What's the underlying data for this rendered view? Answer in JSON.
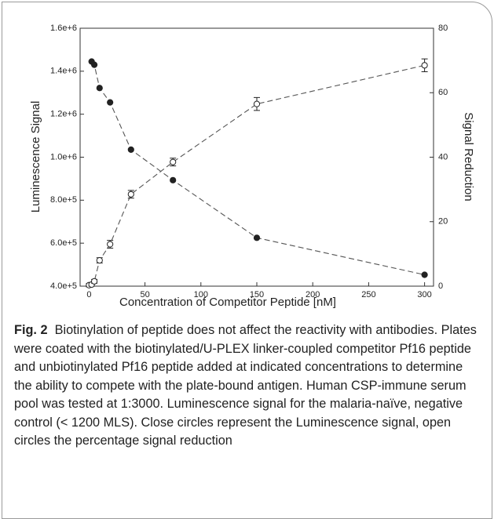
{
  "chart_data": {
    "type": "line",
    "xlabel": "Concentration of Competitor Peptide [nM]",
    "ylabel": "Luminescence Signal",
    "y2label": "Signal Reduction",
    "xlim": [
      -8,
      308
    ],
    "xticks": [
      0,
      50,
      100,
      150,
      200,
      250,
      300
    ],
    "ylim": [
      400000,
      1600000
    ],
    "yticks": [
      {
        "value": 400000,
        "label": "4.0e+5"
      },
      {
        "value": 600000,
        "label": "6.0e+5"
      },
      {
        "value": 800000,
        "label": "8.0e+5"
      },
      {
        "value": 1000000,
        "label": "1.0e+6"
      },
      {
        "value": 1200000,
        "label": "1.2e+6"
      },
      {
        "value": 1400000,
        "label": "1.4e+6"
      },
      {
        "value": 1600000,
        "label": "1.6e+6"
      }
    ],
    "y2lim": [
      0,
      80
    ],
    "y2ticks": [
      0,
      20,
      40,
      60,
      80
    ],
    "series": [
      {
        "marker": "filled",
        "color": "#222222",
        "x": [
          2.3,
          4.7,
          9.4,
          18.8,
          37.5,
          75,
          150,
          300
        ],
        "values": [
          1445000,
          1430000,
          1322000,
          1255000,
          1035000,
          893000,
          625000,
          453000
        ]
      },
      {
        "marker": "open",
        "axis": "y2",
        "color": "#222222",
        "x": [
          0,
          2.3,
          4.7,
          9.4,
          18.8,
          37.5,
          75,
          150,
          300
        ],
        "values": [
          0.3,
          0.5,
          1.5,
          8,
          13,
          28.5,
          38.5,
          56.5,
          68.5
        ],
        "errors": [
          0.5,
          0.5,
          0.6,
          0.8,
          1.2,
          1.2,
          1.2,
          2,
          2
        ]
      }
    ]
  },
  "caption": {
    "label": "Fig. 2",
    "text": "Biotinylation of peptide does not affect the reactivity with antibodies. Plates were coated with the biotinylated/U-PLEX linker-coupled competitor Pf16 peptide and unbiotinylated Pf16 peptide added at indicated concentrations to determine the ability to compete with the plate-bound antigen. Human CSP-immune serum pool was tested at 1:3000. Luminescence signal for the malaria-naïve, negative control (< 1200 MLS). Close circles represent the Luminescence signal, open circles the percentage signal reduction"
  }
}
